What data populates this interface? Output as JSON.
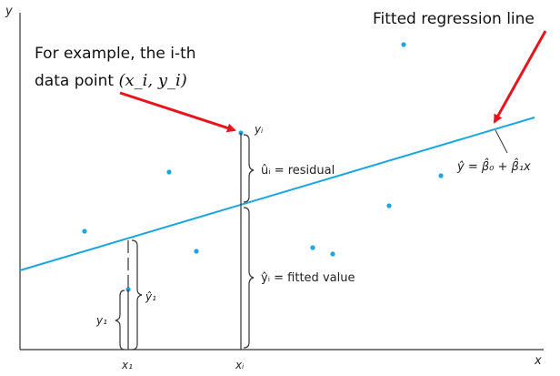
{
  "callouts": {
    "regression_line": "Fitted regression line",
    "example_line1": "For example, the i-th",
    "example_line2_prefix": "data point ",
    "example_point": "(x_i, y_i)"
  },
  "axes": {
    "x_label": "x",
    "y_label": "y",
    "x1_label": "x₁",
    "xi_label": "xᵢ"
  },
  "labels": {
    "yi": "yᵢ",
    "residual": "ûᵢ = residual",
    "fitted_value": "ŷᵢ = fitted value",
    "y1_hat": "ŷ₁",
    "y1": "y₁",
    "equation": "ŷ = β̂₀ + β̂₁x"
  },
  "colors": {
    "line": "#1aa6e0",
    "points": "#1aa6e0",
    "arrow": "#e8141c",
    "axis": "#333333",
    "text": "#111111"
  }
}
